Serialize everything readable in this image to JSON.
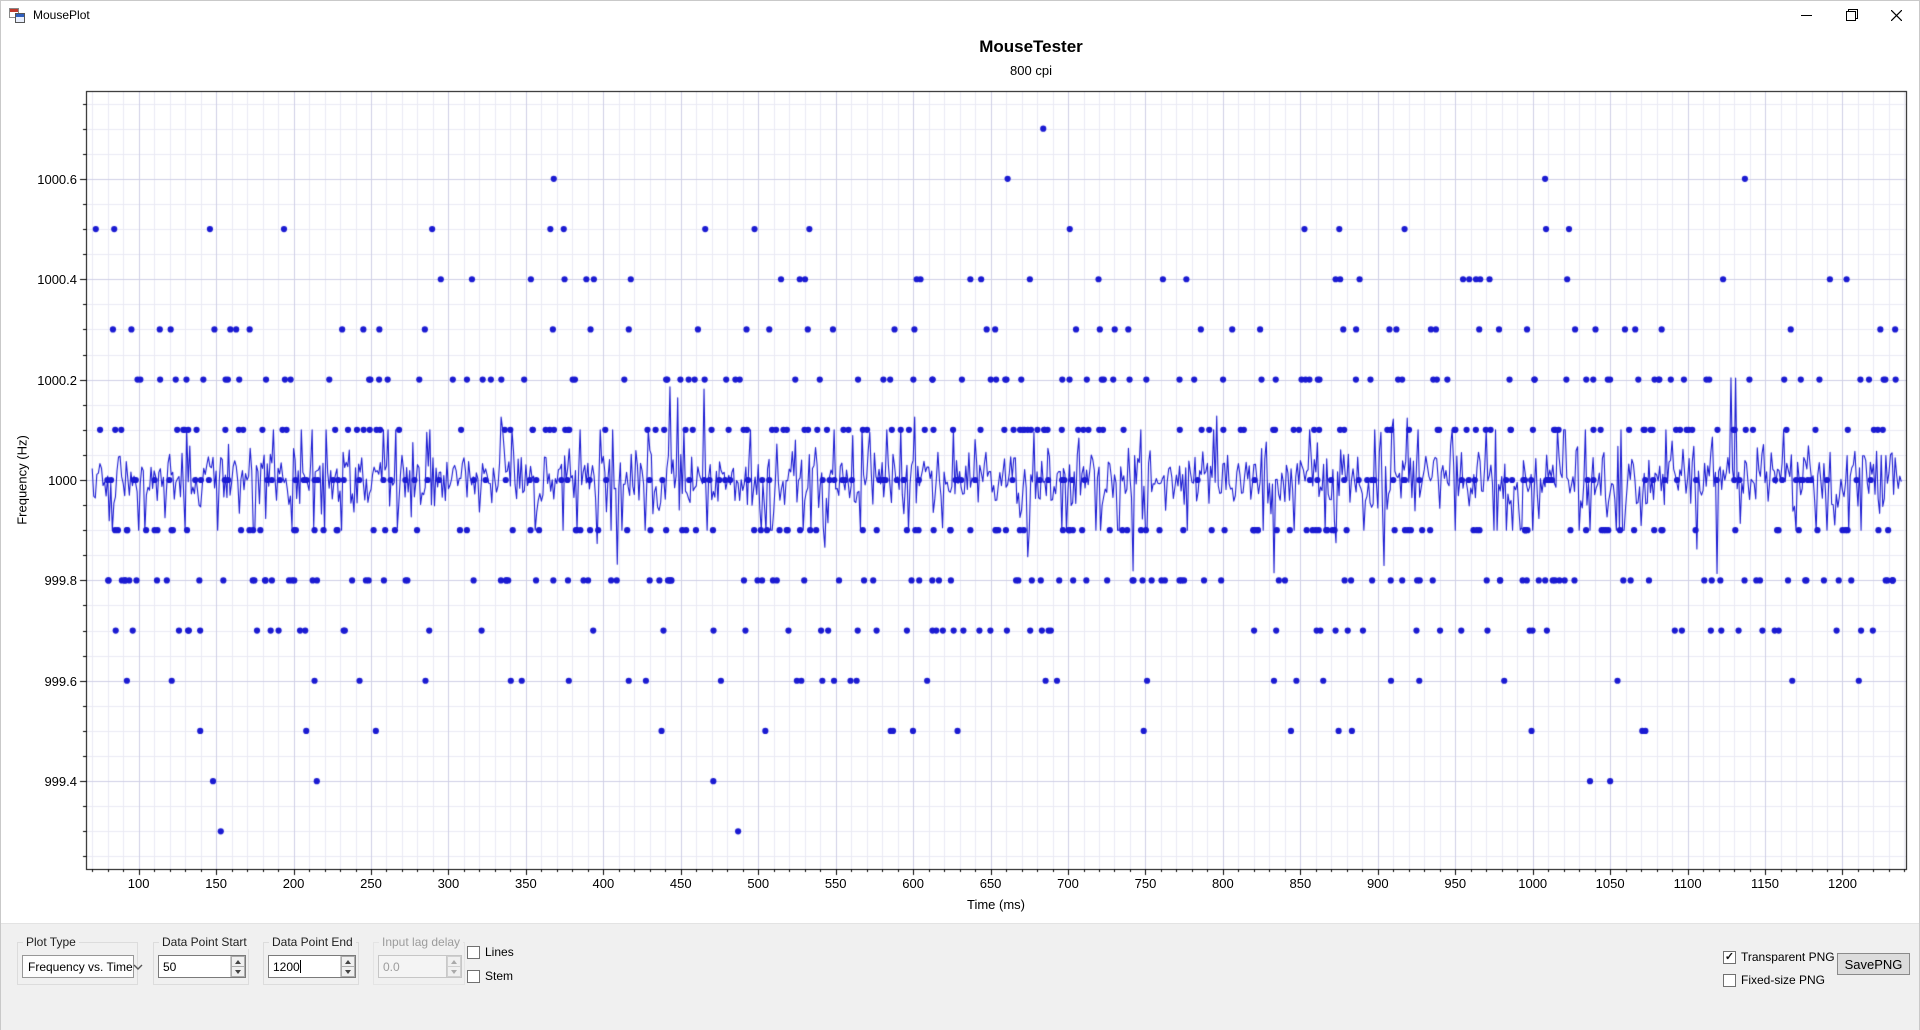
{
  "window": {
    "title": "MousePlot"
  },
  "icons": {
    "checkmark": "✓"
  },
  "chart": {
    "title": "MouseTester",
    "subtitle": "800 cpi",
    "xlabel": "Time (ms)",
    "ylabel": "Frequency (Hz)"
  },
  "chart_data": {
    "type": "scatter",
    "title": "MouseTester",
    "subtitle": "800 cpi",
    "xlabel": "Time (ms)",
    "ylabel": "Frequency (Hz)",
    "xlim": [
      66,
      1241
    ],
    "ylim": [
      999.225,
      1000.775
    ],
    "x_ticks": [
      100,
      150,
      200,
      250,
      300,
      350,
      400,
      450,
      500,
      550,
      600,
      650,
      700,
      750,
      800,
      850,
      900,
      950,
      1000,
      1050,
      1100,
      1150,
      1200
    ],
    "y_ticks": [
      999.4,
      999.6,
      999.8,
      1000,
      1000.2,
      1000.4,
      1000.6
    ],
    "x_minor_step": 10,
    "y_minor_step": 0.05,
    "grid": true,
    "legend": "none",
    "point_color": "#1a1ad2",
    "grid_minor_color": "#eaeaf4",
    "grid_major_color": "#cfcfe6",
    "axis_color": "#000000",
    "line_series": {
      "name": "frequency-vs-time-trace",
      "t_start": 70,
      "t_end": 1238,
      "step": 1,
      "mean": 1000,
      "noise_sigma": 0.034,
      "band_touch_prob": 0.08,
      "spike_prob": 0.012,
      "seed": 1337
    },
    "scatter_seed": 99,
    "scatter_bands": [
      {
        "f": 1000.7,
        "times": [
          684
        ]
      },
      {
        "f": 1000.6,
        "times": [
          368,
          661,
          1008,
          1137
        ]
      },
      {
        "f": 1000.5,
        "count": 16
      },
      {
        "f": 1000.4,
        "count": 30
      },
      {
        "f": 1000.3,
        "count": 48
      },
      {
        "f": 1000.2,
        "count": 100
      },
      {
        "f": 1000.1,
        "count": 135
      },
      {
        "f": 1000.0,
        "count": 120
      },
      {
        "f": 999.9,
        "count": 130
      },
      {
        "f": 999.8,
        "count": 120
      },
      {
        "f": 999.7,
        "count": 62
      },
      {
        "f": 999.6,
        "count": 30
      },
      {
        "f": 999.5,
        "count": 16
      },
      {
        "f": 999.4,
        "times": [
          148,
          215,
          471,
          1037,
          1050
        ]
      },
      {
        "f": 999.3,
        "times": [
          153,
          487
        ]
      }
    ]
  },
  "controls": {
    "plot_type": {
      "label": "Plot Type",
      "value": "Frequency vs. Time"
    },
    "data_point_start": {
      "label": "Data Point Start",
      "value": "50"
    },
    "data_point_end": {
      "label": "Data Point End",
      "value": "1200"
    },
    "input_lag_delay": {
      "label": "Input lag delay",
      "value": "0.0",
      "disabled": true
    },
    "lines": {
      "label": "Lines",
      "checked": false
    },
    "stem": {
      "label": "Stem",
      "checked": false
    },
    "transparent_png": {
      "label": "Transparent PNG",
      "checked": true
    },
    "fixed_size_png": {
      "label": "Fixed-size PNG",
      "checked": false
    },
    "save_png": {
      "label": "SavePNG"
    }
  }
}
